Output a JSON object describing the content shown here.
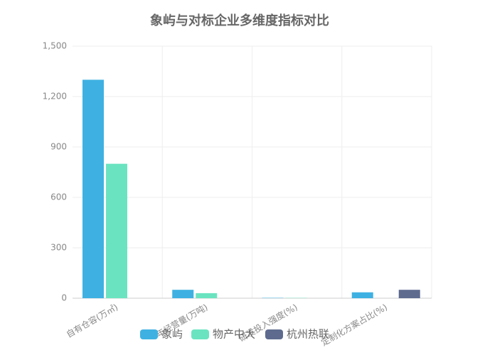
{
  "chart_data": {
    "type": "bar",
    "title": "象屿与对标企业多维度指标对比",
    "categories": [
      "自有仓容(万㎡)",
      "年经营量(万吨)",
      "研发投入强度(%)",
      "定制化方案占比(%)"
    ],
    "series": [
      {
        "name": "象屿",
        "color": "#3eb1e2",
        "values": [
          1300,
          50,
          2,
          35
        ]
      },
      {
        "name": "物产中大",
        "color": "#6ae4c0",
        "values": [
          800,
          30,
          1.5,
          null
        ]
      },
      {
        "name": "杭州热联",
        "color": "#5e6b8f",
        "values": [
          null,
          null,
          null,
          50
        ]
      }
    ],
    "ylim": [
      0,
      1500
    ],
    "yticks": [
      0,
      300,
      600,
      900,
      {
        "value": 1200,
        "label": "1,200"
      },
      {
        "value": 1500,
        "label": "1,500"
      }
    ],
    "grid": true,
    "legend": "bottom"
  }
}
